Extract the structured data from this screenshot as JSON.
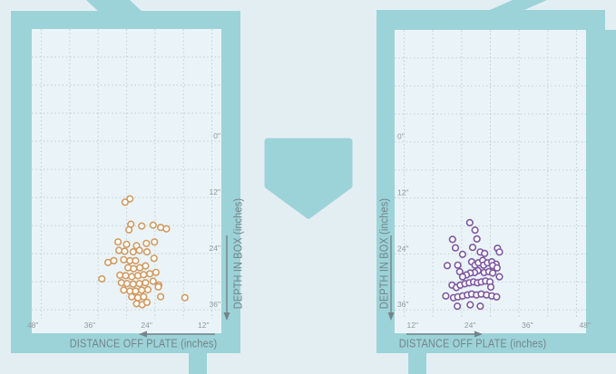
{
  "ui": {
    "colors": {
      "background": "#e3eef3",
      "plot_background": "#eaf4f8",
      "field_teal": "#9cd3d8",
      "grid": "#c2cfd1",
      "tick_text": "#8e9a9e",
      "axis_title_text": "#73858a",
      "left_marker_stroke": "#d29a60",
      "right_marker_stroke": "#7d57a2",
      "marker_fill": "#ffffff"
    },
    "field": {
      "home_plate": "pentagon between the two batters boxes",
      "foul_lines": "diagonal chalk bands at top outer corners"
    }
  },
  "chart_data": [
    {
      "type": "scatter",
      "name": "left-batters-box",
      "x_axis": {
        "label": "DISTANCE OFF PLATE (inches)",
        "tick_labels": [
          "48\"",
          "36\"",
          "24\"",
          "12\""
        ],
        "tick_values": [
          48,
          36,
          24,
          12
        ],
        "range": [
          50,
          10
        ],
        "reversed": true,
        "arrow_direction": "left",
        "grid_step": 6
      },
      "y_axis": {
        "label": "DEPTH IN BOX (inches)",
        "tick_labels": [
          "0\"",
          "12\"",
          "24\"",
          "36\""
        ],
        "tick_values": [
          0,
          12,
          24,
          36
        ],
        "range": [
          -24,
          41
        ],
        "side": "right",
        "arrow_direction": "down",
        "grid_step": 6
      },
      "marker": {
        "shape": "open-circle",
        "stroke": "#d29a60",
        "fill": "#ffffff"
      },
      "points": [
        [
          29.3,
          12.3
        ],
        [
          30.3,
          13.0
        ],
        [
          29.1,
          17.7
        ],
        [
          26.8,
          18.1
        ],
        [
          24.4,
          17.9
        ],
        [
          22.8,
          18.4
        ],
        [
          21.6,
          18.7
        ],
        [
          29.5,
          18.9
        ],
        [
          31.8,
          21.5
        ],
        [
          30.0,
          22.0
        ],
        [
          27.9,
          22.3
        ],
        [
          25.8,
          21.8
        ],
        [
          24.1,
          21.5
        ],
        [
          31.6,
          23.3
        ],
        [
          30.4,
          23.5
        ],
        [
          28.6,
          23.6
        ],
        [
          27.3,
          23.3
        ],
        [
          25.7,
          23.6
        ],
        [
          33.9,
          25.9
        ],
        [
          32.7,
          25.5
        ],
        [
          30.6,
          25.3
        ],
        [
          29.3,
          25.5
        ],
        [
          28.1,
          25.5
        ],
        [
          29.7,
          27.0
        ],
        [
          28.5,
          27.2
        ],
        [
          27.2,
          27.0
        ],
        [
          26.0,
          26.6
        ],
        [
          35.2,
          29.4
        ],
        [
          31.4,
          28.6
        ],
        [
          30.2,
          28.7
        ],
        [
          28.9,
          28.9
        ],
        [
          27.6,
          28.7
        ],
        [
          26.4,
          28.5
        ],
        [
          25.1,
          28.3
        ],
        [
          23.8,
          28.0
        ],
        [
          31.1,
          30.2
        ],
        [
          29.9,
          30.4
        ],
        [
          28.6,
          30.5
        ],
        [
          27.3,
          30.4
        ],
        [
          26.0,
          30.2
        ],
        [
          24.4,
          29.9
        ],
        [
          23.2,
          30.7
        ],
        [
          30.6,
          31.8
        ],
        [
          29.3,
          32.0
        ],
        [
          28.1,
          32.0
        ],
        [
          26.8,
          31.8
        ],
        [
          25.5,
          31.7
        ],
        [
          28.9,
          33.2
        ],
        [
          27.6,
          33.4
        ],
        [
          26.4,
          33.2
        ],
        [
          23.3,
          31.1
        ],
        [
          17.7,
          33.4
        ],
        [
          22.8,
          33.2
        ],
        [
          27.9,
          34.7
        ],
        [
          26.7,
          34.9
        ],
        [
          25.7,
          34.4
        ],
        [
          24.2,
          25.0
        ]
      ]
    },
    {
      "type": "scatter",
      "name": "right-batters-box",
      "x_axis": {
        "label": "DISTANCE OFF PLATE (inches)",
        "tick_labels": [
          "12\"",
          "24\"",
          "36\"",
          "48\""
        ],
        "tick_values": [
          12,
          24,
          36,
          48
        ],
        "range": [
          10,
          50
        ],
        "reversed": false,
        "arrow_direction": "right",
        "grid_step": 6
      },
      "y_axis": {
        "label": "DEPTH IN BOX (inches)",
        "tick_labels": [
          "0\"",
          "12\"",
          "24\"",
          "36\""
        ],
        "tick_values": [
          0,
          12,
          24,
          36
        ],
        "range": [
          -24,
          41
        ],
        "side": "left",
        "arrow_direction": "down",
        "grid_step": 6
      },
      "marker": {
        "shape": "open-circle",
        "stroke": "#7d57a2",
        "fill": "#ffffff"
      },
      "points": [
        [
          25.7,
          17.3
        ],
        [
          26.8,
          18.9
        ],
        [
          27.2,
          20.8
        ],
        [
          22.1,
          20.9
        ],
        [
          22.7,
          22.7
        ],
        [
          26.3,
          22.6
        ],
        [
          24.2,
          24.1
        ],
        [
          27.9,
          23.6
        ],
        [
          28.8,
          23.9
        ],
        [
          31.5,
          22.8
        ],
        [
          31.9,
          23.6
        ],
        [
          21.0,
          26.5
        ],
        [
          23.2,
          26.4
        ],
        [
          23.6,
          27.8
        ],
        [
          26.1,
          25.7
        ],
        [
          26.8,
          26.4
        ],
        [
          27.5,
          25.9
        ],
        [
          28.4,
          25.4
        ],
        [
          28.6,
          26.4
        ],
        [
          29.4,
          25.9
        ],
        [
          30.3,
          25.7
        ],
        [
          31.2,
          26.2
        ],
        [
          30.5,
          26.5
        ],
        [
          31.4,
          27.0
        ],
        [
          28.7,
          28.0
        ],
        [
          29.7,
          27.8
        ],
        [
          30.5,
          28.1
        ],
        [
          27.4,
          27.6
        ],
        [
          26.7,
          28.0
        ],
        [
          25.8,
          28.1
        ],
        [
          25.0,
          28.5
        ],
        [
          24.2,
          28.9
        ],
        [
          22.0,
          30.7
        ],
        [
          22.9,
          31.2
        ],
        [
          23.7,
          30.7
        ],
        [
          24.7,
          30.4
        ],
        [
          25.6,
          30.2
        ],
        [
          26.5,
          30.0
        ],
        [
          27.3,
          30.2
        ],
        [
          28.1,
          30.0
        ],
        [
          29.0,
          29.8
        ],
        [
          29.9,
          30.0
        ],
        [
          30.1,
          31.1
        ],
        [
          20.7,
          33.0
        ],
        [
          22.3,
          33.4
        ],
        [
          23.2,
          33.2
        ],
        [
          24.2,
          33.0
        ],
        [
          25.2,
          32.8
        ],
        [
          26.1,
          32.6
        ],
        [
          27.1,
          32.8
        ],
        [
          28.1,
          32.6
        ],
        [
          29.2,
          32.8
        ],
        [
          30.3,
          33.0
        ],
        [
          31.3,
          33.2
        ],
        [
          23.1,
          35.2
        ],
        [
          25.8,
          34.9
        ],
        [
          27.9,
          35.2
        ],
        [
          31.9,
          28.9
        ]
      ]
    }
  ]
}
